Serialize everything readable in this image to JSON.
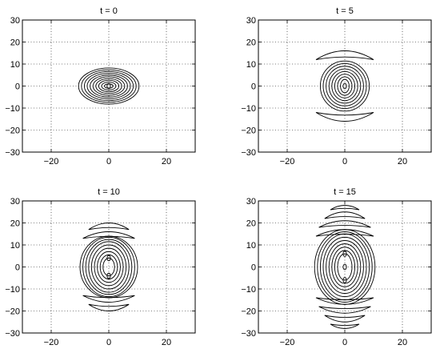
{
  "chart_data": [
    {
      "type": "contour",
      "title": "t = 0",
      "xlabel": "",
      "ylabel": "",
      "xlim": [
        -30,
        30
      ],
      "ylim": [
        -30,
        30
      ],
      "xticks": [
        -20,
        0,
        20
      ],
      "yticks": [
        -30,
        -20,
        -10,
        0,
        10,
        20,
        30
      ],
      "grid": true,
      "central_blob": {
        "rx_values": [
          1.5,
          2.5,
          3.5,
          4.5,
          5.5,
          6.5,
          7.5,
          8.5,
          9.5,
          10.5
        ],
        "ry_values": [
          1,
          1.8,
          2.6,
          3.4,
          4.2,
          5,
          5.8,
          6.6,
          7.4,
          8.2
        ]
      },
      "lobes": [],
      "cores": [
        {
          "y": 0
        }
      ]
    },
    {
      "type": "contour",
      "title": "t = 5",
      "xlabel": "",
      "ylabel": "",
      "xlim": [
        -30,
        30
      ],
      "ylim": [
        -30,
        30
      ],
      "xticks": [
        -20,
        0,
        20
      ],
      "yticks": [
        -30,
        -20,
        -10,
        0,
        10,
        20,
        30
      ],
      "grid": true,
      "central_blob": {
        "rx_values": [
          1.5,
          2.5,
          3.5,
          4.5,
          5.5,
          6.5,
          7.5,
          8.5
        ],
        "ry_values": [
          3,
          4.2,
          5.4,
          6.6,
          7.8,
          9,
          10.2,
          11.4
        ]
      },
      "lobes": [
        {
          "y": 12,
          "width": 10,
          "depth": 4,
          "sign": 1
        },
        {
          "y": -12,
          "width": 10,
          "depth": 4,
          "sign": -1
        }
      ],
      "cores": [
        {
          "y": 0
        }
      ]
    },
    {
      "type": "contour",
      "title": "t = 10",
      "xlabel": "",
      "ylabel": "",
      "xlim": [
        -30,
        30
      ],
      "ylim": [
        -30,
        30
      ],
      "xticks": [
        -20,
        0,
        20
      ],
      "yticks": [
        -30,
        -20,
        -10,
        0,
        10,
        20,
        30
      ],
      "grid": true,
      "central_blob": {
        "rx_values": [
          2,
          3,
          4,
          5,
          6,
          7,
          8,
          9,
          10
        ],
        "ry_values": [
          4,
          5.5,
          7,
          8.5,
          10,
          11.5,
          12.5,
          13.5,
          14
        ]
      },
      "lobes": [
        {
          "y": 13,
          "width": 9,
          "depth": 3,
          "sign": 1
        },
        {
          "y": 17,
          "width": 7,
          "depth": 3,
          "sign": 1
        },
        {
          "y": -13,
          "width": 9,
          "depth": 3,
          "sign": -1
        },
        {
          "y": -17,
          "width": 7,
          "depth": 3,
          "sign": -1
        }
      ],
      "cores": [
        {
          "y": 4
        },
        {
          "y": -4
        }
      ]
    },
    {
      "type": "contour",
      "title": "t = 15",
      "xlabel": "",
      "ylabel": "",
      "xlim": [
        -30,
        30
      ],
      "ylim": [
        -30,
        30
      ],
      "xticks": [
        -20,
        0,
        20
      ],
      "yticks": [
        -30,
        -20,
        -10,
        0,
        10,
        20,
        30
      ],
      "grid": true,
      "central_blob": {
        "rx_values": [
          2.5,
          3.5,
          4.5,
          5.5,
          6.5,
          7.5,
          8.5,
          9.5,
          10.5
        ],
        "ry_values": [
          6,
          7.5,
          9,
          10.5,
          12,
          13.5,
          15,
          16,
          17
        ]
      },
      "lobes": [
        {
          "y": 14,
          "width": 10,
          "depth": 3,
          "sign": 1
        },
        {
          "y": 18,
          "width": 9,
          "depth": 3,
          "sign": 1
        },
        {
          "y": 22,
          "width": 7,
          "depth": 3,
          "sign": 1
        },
        {
          "y": 26,
          "width": 5,
          "depth": 2,
          "sign": 1
        },
        {
          "y": -14,
          "width": 10,
          "depth": 3,
          "sign": -1
        },
        {
          "y": -18,
          "width": 9,
          "depth": 3,
          "sign": -1
        },
        {
          "y": -22,
          "width": 7,
          "depth": 3,
          "sign": -1
        },
        {
          "y": -26,
          "width": 5,
          "depth": 2,
          "sign": -1
        }
      ],
      "cores": [
        {
          "y": 6
        },
        {
          "y": 0
        },
        {
          "y": -6
        }
      ]
    }
  ]
}
